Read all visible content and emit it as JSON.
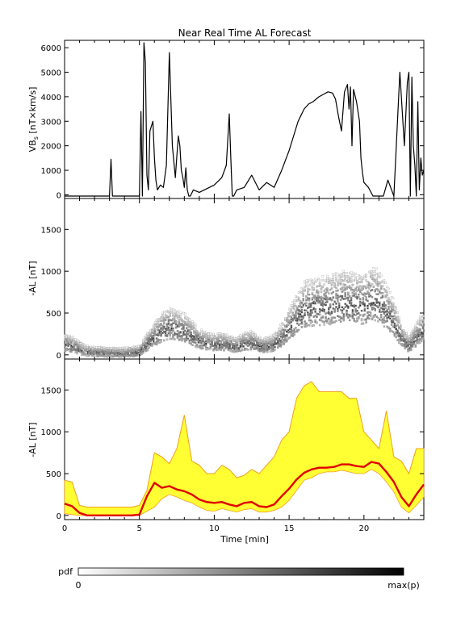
{
  "title": "Near Real Time AL Forecast",
  "colors": {
    "frame": "#000000",
    "band_fill": "#ffff33",
    "band_edge": "#f0a020",
    "median": "#e00000"
  },
  "colorbar": {
    "label": "pdf",
    "min_label": "0",
    "max_label": "max(p)"
  },
  "x_axis": {
    "label": "Time [min]",
    "ticks": [
      "0",
      "5",
      "10",
      "15",
      "20"
    ],
    "range": [
      0,
      24
    ]
  },
  "chart_data": [
    {
      "type": "line",
      "ylabel": "VB_s [nT×km/s]",
      "ylabel_main": "VB",
      "ylabel_sub": "s",
      "ylabel_rest": "[nT×km/s]",
      "xlim": [
        0,
        24
      ],
      "ylim": [
        -150,
        6300
      ],
      "yticks": [
        0,
        1000,
        2000,
        3000,
        4000,
        5000,
        6000
      ],
      "series": [
        {
          "x": [
            0,
            3.0,
            3.1,
            3.2,
            3.3,
            5.0,
            5.1,
            5.2,
            5.3,
            5.4,
            5.5,
            5.6,
            5.7,
            5.8,
            5.9,
            6.0,
            6.1,
            6.2,
            6.4,
            6.6,
            6.8,
            7.0,
            7.2,
            7.4,
            7.5,
            7.6,
            7.7,
            7.8,
            7.9,
            8.0,
            8.1,
            8.2,
            8.3,
            8.4,
            8.6,
            9.0,
            10.0,
            10.5,
            10.8,
            11.0,
            11.1,
            11.2,
            11.3,
            11.5,
            12.0,
            12.5,
            13.0,
            13.5,
            14.0,
            14.5,
            15.0,
            15.3,
            15.6,
            16.0,
            16.3,
            16.6,
            17.0,
            17.3,
            17.6,
            17.9,
            18.1,
            18.3,
            18.5,
            18.7,
            18.9,
            19.0,
            19.1,
            19.2,
            19.3,
            19.5,
            19.7,
            19.8,
            19.9,
            20.0,
            20.3,
            20.6,
            21.0,
            21.3,
            21.6,
            22.0,
            22.4,
            22.7,
            22.9,
            23.0,
            23.1,
            23.2,
            23.3,
            23.4,
            23.5,
            23.6,
            23.7,
            23.8,
            23.9,
            24.0
          ],
          "y": [
            -50,
            -50,
            1450,
            -50,
            -50,
            -50,
            3400,
            -50,
            6200,
            5400,
            800,
            200,
            2600,
            2800,
            3000,
            1500,
            600,
            200,
            400,
            300,
            1200,
            5800,
            2000,
            700,
            1600,
            2400,
            2000,
            1000,
            700,
            300,
            1100,
            200,
            -50,
            -50,
            200,
            100,
            400,
            700,
            1200,
            3300,
            1600,
            -50,
            -50,
            200,
            300,
            800,
            200,
            500,
            300,
            1000,
            1800,
            2400,
            3000,
            3500,
            3700,
            3800,
            4000,
            4100,
            4200,
            4150,
            3900,
            3200,
            2600,
            4200,
            4500,
            3500,
            4400,
            2000,
            4300,
            3800,
            3000,
            1500,
            900,
            500,
            300,
            -50,
            -50,
            -50,
            600,
            -50,
            5000,
            2000,
            4600,
            5000,
            -50,
            4800,
            2000,
            1200,
            -50,
            3800,
            200,
            1500,
            800,
            1000
          ]
        }
      ]
    },
    {
      "type": "heatmap",
      "ylabel": "-AL [nT]",
      "xlim": [
        0,
        24
      ],
      "ylim": [
        -50,
        1870
      ],
      "yticks": [
        0,
        500,
        1000,
        1500
      ],
      "median_x": [
        0,
        0.5,
        1.0,
        1.5,
        2.0,
        2.5,
        3.0,
        3.5,
        4.0,
        4.5,
        5.0,
        5.5,
        6.0,
        6.5,
        7.0,
        7.5,
        8.0,
        8.5,
        9.0,
        9.5,
        10.0,
        10.5,
        11.0,
        11.5,
        12.0,
        12.5,
        13.0,
        13.5,
        14.0,
        14.5,
        15.0,
        15.5,
        16.0,
        16.5,
        17.0,
        17.5,
        18.0,
        18.5,
        19.0,
        19.5,
        20.0,
        20.5,
        21.0,
        21.5,
        22.0,
        22.5,
        23.0,
        23.5,
        24.0
      ],
      "median_y": [
        120,
        100,
        60,
        30,
        20,
        20,
        15,
        15,
        15,
        20,
        30,
        120,
        200,
        280,
        320,
        300,
        280,
        220,
        160,
        130,
        120,
        130,
        110,
        90,
        130,
        140,
        100,
        90,
        120,
        200,
        310,
        420,
        520,
        540,
        560,
        560,
        580,
        600,
        600,
        580,
        580,
        630,
        610,
        500,
        380,
        200,
        100,
        200,
        300
      ],
      "annotation": "grey-scale probability density per time step"
    },
    {
      "type": "area",
      "ylabel": "-AL [nT]",
      "xlim": [
        0,
        24
      ],
      "ylim": [
        -50,
        1870
      ],
      "yticks": [
        0,
        500,
        1000,
        1500
      ],
      "x": [
        0,
        0.5,
        1.0,
        1.5,
        2.0,
        2.5,
        3.0,
        3.5,
        4.0,
        4.5,
        5.0,
        5.5,
        6.0,
        6.5,
        7.0,
        7.5,
        8.0,
        8.5,
        9.0,
        9.5,
        10.0,
        10.5,
        11.0,
        11.5,
        12.0,
        12.5,
        13.0,
        13.5,
        14.0,
        14.5,
        15.0,
        15.5,
        16.0,
        16.5,
        17.0,
        17.5,
        18.0,
        18.5,
        19.0,
        19.5,
        20.0,
        20.5,
        21.0,
        21.5,
        22.0,
        22.5,
        23.0,
        23.5,
        24.0
      ],
      "series": [
        {
          "name": "upper",
          "values": [
            420,
            400,
            120,
            100,
            100,
            100,
            100,
            100,
            100,
            100,
            120,
            300,
            750,
            700,
            620,
            800,
            1200,
            650,
            600,
            500,
            500,
            600,
            550,
            450,
            480,
            550,
            500,
            600,
            700,
            900,
            1000,
            1400,
            1550,
            1600,
            1480,
            1480,
            1480,
            1480,
            1400,
            1400,
            1000,
            900,
            800,
            1250,
            700,
            650,
            500,
            800,
            800
          ]
        },
        {
          "name": "lower",
          "values": [
            20,
            10,
            0,
            0,
            0,
            0,
            0,
            0,
            0,
            0,
            0,
            50,
            100,
            200,
            250,
            220,
            180,
            150,
            100,
            60,
            50,
            80,
            60,
            40,
            70,
            80,
            40,
            40,
            60,
            100,
            180,
            300,
            420,
            450,
            500,
            520,
            520,
            540,
            520,
            500,
            500,
            550,
            500,
            400,
            280,
            100,
            30,
            120,
            220
          ]
        },
        {
          "name": "median",
          "values": [
            140,
            110,
            30,
            0,
            0,
            0,
            0,
            0,
            0,
            0,
            10,
            230,
            390,
            330,
            350,
            310,
            290,
            250,
            190,
            160,
            150,
            160,
            130,
            110,
            150,
            160,
            110,
            100,
            130,
            230,
            320,
            430,
            510,
            550,
            570,
            570,
            580,
            610,
            610,
            590,
            580,
            640,
            620,
            520,
            400,
            220,
            110,
            250,
            370
          ]
        }
      ]
    }
  ]
}
